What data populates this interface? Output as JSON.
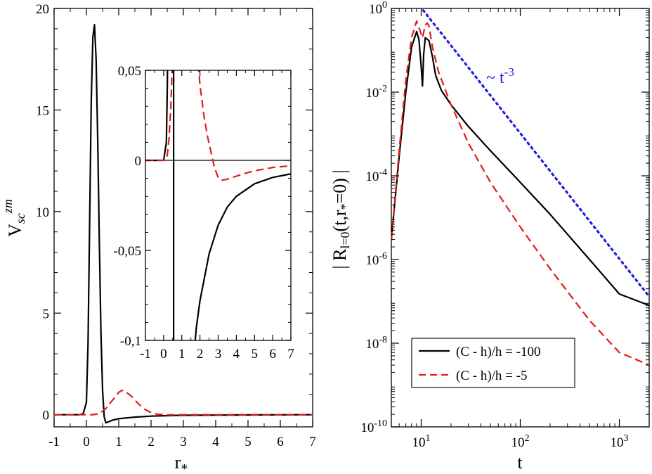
{
  "chart_data": [
    {
      "type": "line",
      "panel": "left",
      "title": "",
      "xlabel": "r",
      "xlabel_sub": "*",
      "ylabel": "V",
      "ylabel_sub": "sc",
      "ylabel_sup": "zm",
      "xlim": [
        -1,
        7
      ],
      "ylim": [
        -0.6,
        20
      ],
      "xticks": [
        -1,
        0,
        1,
        2,
        3,
        4,
        5,
        6,
        7
      ],
      "xtick_labels": [
        "-1",
        "0",
        "1",
        "2",
        "3",
        "4",
        "5",
        "6",
        "7"
      ],
      "yticks": [
        0,
        5,
        10,
        15,
        20
      ],
      "ytick_labels": [
        "0",
        "5",
        "10",
        "15",
        "20"
      ],
      "grid": false,
      "series": [
        {
          "color": "#000000",
          "dash": "solid",
          "x": [
            -1,
            -0.2,
            -0.1,
            0,
            0.05,
            0.1,
            0.15,
            0.2,
            0.25,
            0.3,
            0.35,
            0.4,
            0.45,
            0.5,
            0.55,
            0.6,
            0.7,
            0.8,
            1.0,
            1.5,
            2.0,
            3.0,
            5.0,
            7.0
          ],
          "y": [
            0,
            0,
            0.05,
            0.6,
            3.5,
            9.5,
            15.5,
            18.6,
            19.2,
            17.5,
            13.5,
            8.5,
            4.0,
            1.2,
            -0.1,
            -0.4,
            -0.34,
            -0.27,
            -0.2,
            -0.12,
            -0.07,
            -0.03,
            -0.01,
            0
          ]
        },
        {
          "color": "#e21b1b",
          "dash": "dashed",
          "x": [
            -1,
            0.2,
            0.4,
            0.6,
            0.8,
            1.0,
            1.1,
            1.2,
            1.4,
            1.6,
            1.8,
            2.0,
            2.2,
            2.5,
            3.0,
            7.0
          ],
          "y": [
            0,
            0,
            0.05,
            0.3,
            0.7,
            1.1,
            1.2,
            1.15,
            0.9,
            0.55,
            0.27,
            0.1,
            0.02,
            -0.01,
            0,
            0
          ]
        }
      ]
    },
    {
      "type": "line",
      "panel": "left-inset",
      "title": "",
      "xlim": [
        -1,
        7
      ],
      "ylim": [
        -0.1,
        0.05
      ],
      "xticks": [
        -1,
        0,
        1,
        2,
        3,
        4,
        5,
        6,
        7
      ],
      "xtick_labels": [
        "-1",
        "0",
        "1",
        "2",
        "3",
        "4",
        "5",
        "6",
        "7"
      ],
      "yticks": [
        -0.1,
        -0.05,
        0,
        0.05
      ],
      "ytick_labels": [
        "-0,1",
        "-0,05",
        "0",
        "0,05"
      ],
      "grid": false,
      "series": [
        {
          "color": "#000000",
          "dash": "solid",
          "x": [
            -1,
            0,
            0.15,
            0.2,
            0.22
          ],
          "y": [
            0,
            0,
            0.01,
            0.04,
            0.06
          ],
          "segment": "rise"
        },
        {
          "color": "#000000",
          "dash": "solid",
          "x": [
            0.55,
            0.55
          ],
          "y": [
            0.06,
            -0.11
          ],
          "segment": "vertical"
        },
        {
          "color": "#000000",
          "dash": "solid",
          "x": [
            1.65,
            1.8,
            2.0,
            2.5,
            3.0,
            3.5,
            4.0,
            5.0,
            6.0,
            7.0
          ],
          "y": [
            -0.11,
            -0.093,
            -0.078,
            -0.052,
            -0.036,
            -0.026,
            -0.02,
            -0.013,
            -0.0095,
            -0.0075
          ],
          "segment": "tail"
        },
        {
          "color": "#e21b1b",
          "dash": "dashed",
          "x": [
            -1,
            0.1,
            0.2,
            0.3,
            0.4,
            0.5
          ],
          "y": [
            0,
            0,
            0.003,
            0.012,
            0.03,
            0.06
          ],
          "segment": "rise"
        },
        {
          "color": "#e21b1b",
          "dash": "dashed",
          "x": [
            1.85,
            2.0,
            2.2,
            2.4,
            2.6,
            2.8,
            3.0,
            3.2,
            3.5,
            4.0,
            4.5,
            5.0,
            6.0,
            7.0
          ],
          "y": [
            0.06,
            0.042,
            0.026,
            0.014,
            0.005,
            -0.004,
            -0.0095,
            -0.011,
            -0.0105,
            -0.0088,
            -0.0072,
            -0.0058,
            -0.004,
            -0.003
          ],
          "segment": "fall"
        }
      ]
    },
    {
      "type": "line",
      "panel": "right",
      "title": "",
      "xlabel": "t",
      "ylabel": "| R_{l=0}(t,r_*=0) |",
      "x_scale": "log",
      "y_scale": "log",
      "xlim": [
        5,
        2000
      ],
      "ylim": [
        1e-10,
        1
      ],
      "xticks": [
        10,
        100,
        1000
      ],
      "xtick_labels": [
        [
          "10",
          "1"
        ],
        [
          "10",
          "2"
        ],
        [
          "10",
          "3"
        ]
      ],
      "yticks": [
        1e-10,
        1e-08,
        1e-06,
        0.0001,
        0.01,
        1
      ],
      "ytick_labels": [
        [
          "10",
          "-10"
        ],
        [
          "10",
          "-8"
        ],
        [
          "10",
          "-6"
        ],
        [
          "10",
          "-4"
        ],
        [
          "10",
          "-2"
        ],
        [
          "10",
          "0"
        ]
      ],
      "grid": false,
      "legend_position": "bottom-left",
      "annotation": {
        "base": "~ t",
        "exponent": "-3"
      },
      "series": [
        {
          "name": "(C - h)/h = -100",
          "color": "#000000",
          "dash": "solid",
          "x": [
            5,
            6,
            7,
            8,
            9,
            9.5,
            10.0,
            10.3,
            10.6,
            11.0,
            12,
            13,
            14,
            16,
            20,
            30,
            50,
            100,
            200,
            500,
            1000,
            2000
          ],
          "y": [
            3e-06,
            0.0003,
            0.01,
            0.12,
            0.28,
            0.18,
            0.04,
            0.014,
            0.08,
            0.2,
            0.17,
            0.07,
            0.025,
            0.011,
            0.005,
            0.0015,
            0.0004,
            7e-05,
            1.2e-05,
            1e-06,
            1.5e-07,
            8e-08
          ]
        },
        {
          "name": "(C - h)/h = -5",
          "color": "#e21b1b",
          "dash": "dashed",
          "x": [
            5,
            6,
            7,
            8,
            9,
            9.5,
            10.3,
            11,
            11.5,
            12,
            13,
            15,
            20,
            30,
            50,
            100,
            200,
            500,
            1000,
            2000
          ],
          "y": [
            3e-06,
            0.0004,
            0.02,
            0.2,
            0.5,
            0.35,
            0.2,
            0.4,
            0.45,
            0.38,
            0.12,
            0.03,
            0.005,
            0.0006,
            7e-05,
            6e-06,
            6e-07,
            3.5e-08,
            6e-09,
            3e-09
          ]
        },
        {
          "color": "#1f1fe0",
          "dash": "dotted",
          "x": [
            10.5,
            2000
          ],
          "y": [
            0.9,
            1.3e-07
          ]
        }
      ]
    }
  ]
}
